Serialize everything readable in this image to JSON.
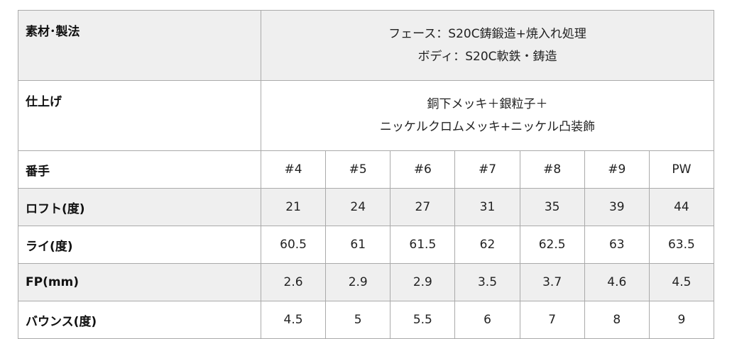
{
  "material": {
    "label": "素材･製法",
    "line1": "フェース：S20C鋳鍛造+焼入れ処理",
    "line2": "ボディ：S20C軟鉄・鋳造"
  },
  "finish": {
    "label": "仕上げ",
    "line1": "銅下メッキ＋銀粒子＋",
    "line2": "ニッケルクロムメッキ+ニッケル凸装飾"
  },
  "rows": [
    {
      "label": "番手",
      "values": [
        "#4",
        "#5",
        "#6",
        "#7",
        "#8",
        "#9",
        "PW"
      ]
    },
    {
      "label": "ロフト(度)",
      "values": [
        "21",
        "24",
        "27",
        "31",
        "35",
        "39",
        "44"
      ]
    },
    {
      "label": "ライ(度)",
      "values": [
        "60.5",
        "61",
        "61.5",
        "62",
        "62.5",
        "63",
        "63.5"
      ]
    },
    {
      "label": "FP(mm)",
      "values": [
        "2.6",
        "2.9",
        "2.9",
        "3.5",
        "3.7",
        "4.6",
        "4.5"
      ]
    },
    {
      "label": "バウンス(度)",
      "values": [
        "4.5",
        "5",
        "5.5",
        "6",
        "7",
        "8",
        "9"
      ]
    }
  ]
}
